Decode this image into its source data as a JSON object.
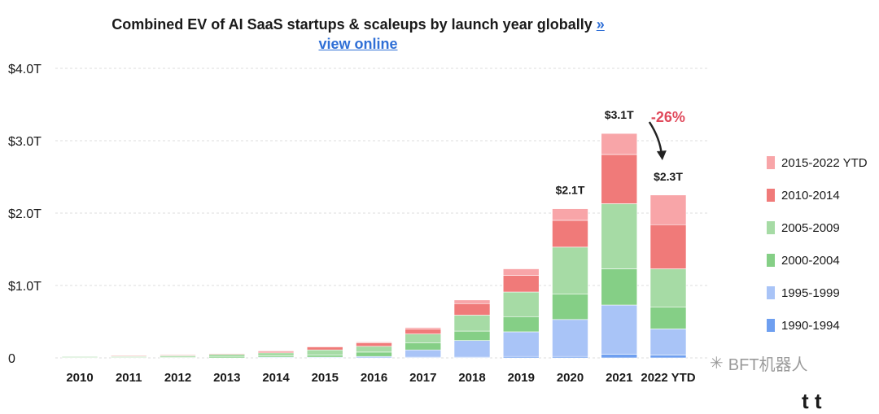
{
  "title": "Combined EV of AI SaaS startups & scaleups by launch year globally",
  "link_arrow": "»",
  "link_text": "view online",
  "colors": {
    "s2015": "#f8a5a8",
    "s2010": "#f07a79",
    "s2005": "#a6dba5",
    "s2000": "#85cf86",
    "s1995": "#a9c4f7",
    "s1990": "#6e9ff0",
    "grid": "#dcdcdc",
    "change": "#e0485a"
  },
  "chart_data": {
    "type": "bar",
    "stacked": true,
    "title": "Combined EV of AI SaaS startups & scaleups by launch year globally",
    "xlabel": "",
    "ylabel": "",
    "ylim": [
      0,
      4.0
    ],
    "yticks": [
      0,
      1.0,
      2.0,
      3.0,
      4.0
    ],
    "ytick_labels": [
      "0",
      "$1.0T",
      "$2.0T",
      "$3.0T",
      "$4.0T"
    ],
    "categories": [
      "2010",
      "2011",
      "2012",
      "2013",
      "2014",
      "2015",
      "2016",
      "2017",
      "2018",
      "2019",
      "2020",
      "2021",
      "2022 YTD"
    ],
    "series": [
      {
        "name": "1990-1994",
        "color": "#6e9ff0",
        "values": [
          0,
          0,
          0,
          0,
          0,
          0,
          0,
          0.01,
          0.01,
          0.02,
          0.02,
          0.05,
          0.04
        ]
      },
      {
        "name": "1995-1999",
        "color": "#a9c4f7",
        "values": [
          0,
          0,
          0,
          0,
          0.01,
          0.01,
          0.02,
          0.1,
          0.23,
          0.34,
          0.51,
          0.68,
          0.36
        ]
      },
      {
        "name": "2000-2004",
        "color": "#85cf86",
        "values": [
          0.01,
          0.01,
          0.01,
          0.02,
          0.02,
          0.03,
          0.06,
          0.1,
          0.13,
          0.21,
          0.35,
          0.5,
          0.3
        ]
      },
      {
        "name": "2005-2009",
        "color": "#a6dba5",
        "values": [
          0.01,
          0.01,
          0.02,
          0.03,
          0.04,
          0.07,
          0.08,
          0.12,
          0.22,
          0.34,
          0.65,
          0.9,
          0.53
        ]
      },
      {
        "name": "2010-2014",
        "color": "#f07a79",
        "values": [
          0,
          0.01,
          0.01,
          0.01,
          0.02,
          0.04,
          0.05,
          0.07,
          0.16,
          0.23,
          0.37,
          0.68,
          0.61
        ]
      },
      {
        "name": "2015-2022 YTD",
        "color": "#f8a5a8",
        "values": [
          0,
          0,
          0,
          0,
          0.01,
          0.01,
          0.01,
          0.02,
          0.05,
          0.09,
          0.16,
          0.29,
          0.41
        ]
      }
    ],
    "totals_labels": [
      {
        "category": "2020",
        "label": "$2.1T",
        "value": 2.06
      },
      {
        "category": "2021",
        "label": "$3.1T",
        "value": 3.1
      },
      {
        "category": "2022 YTD",
        "label": "$2.3T",
        "value": 2.25
      }
    ],
    "annotation": {
      "text": "-26%",
      "from": "2021",
      "to": "2022 YTD"
    },
    "legend_position": "right"
  },
  "watermark": "BFT机器人",
  "cut_text": "t t"
}
